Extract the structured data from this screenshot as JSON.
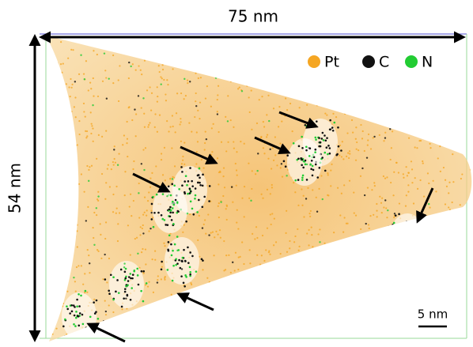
{
  "dimensions": {
    "width": "75 nm",
    "height": "54 nm"
  },
  "legend": [
    {
      "label": "Pt",
      "color": "#f5a623"
    },
    {
      "label": "C",
      "color": "#111111"
    },
    {
      "label": "N",
      "color": "#22cc33"
    }
  ],
  "scale_bar": "5 nm"
}
